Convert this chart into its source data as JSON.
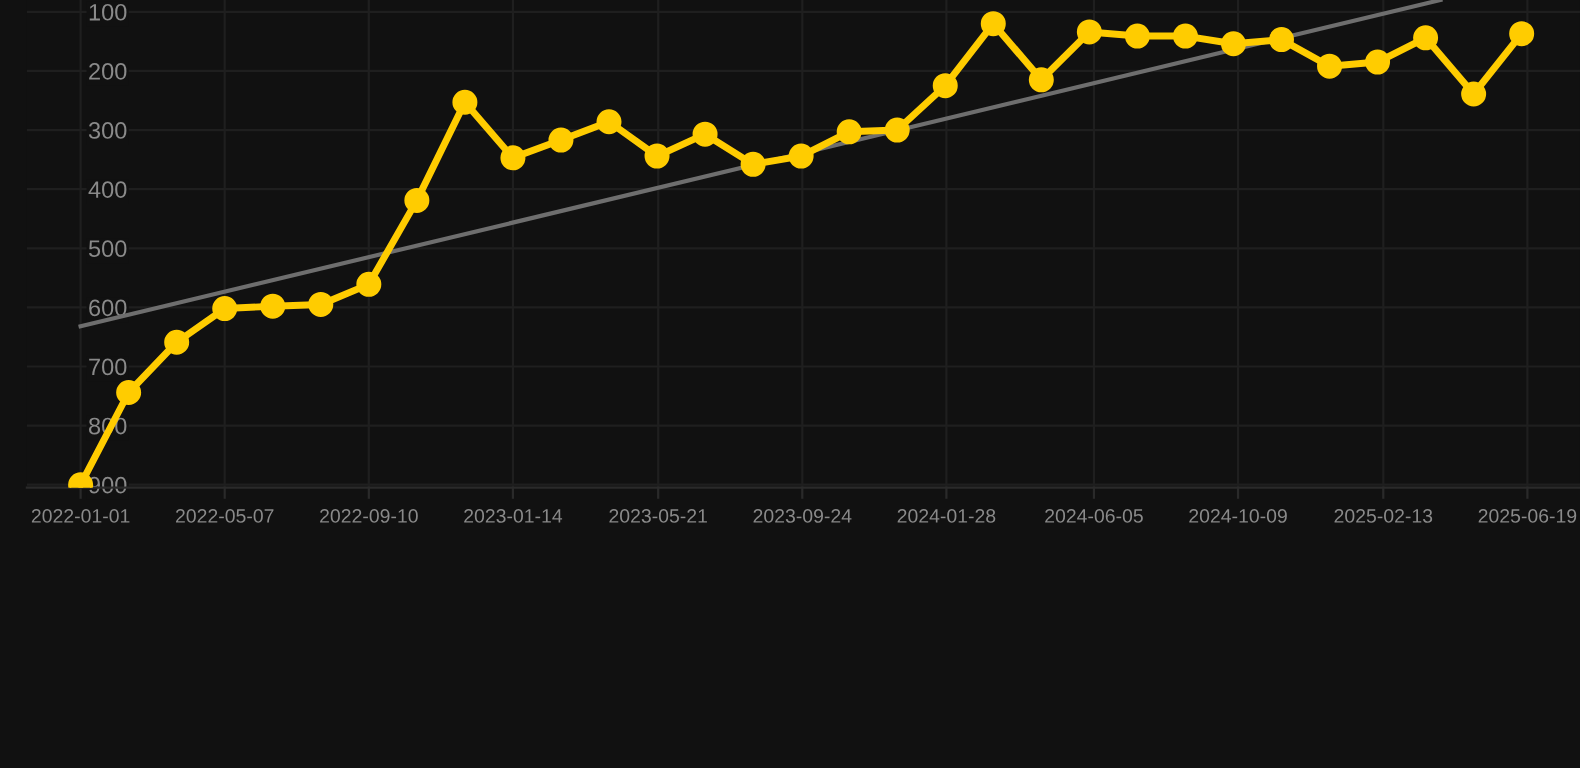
{
  "chart_data": {
    "type": "line",
    "x": [
      "2022-01-01",
      "2022-02-12",
      "2022-03-26",
      "2022-05-07",
      "2022-06-18",
      "2022-07-30",
      "2022-09-10",
      "2022-10-22",
      "2022-12-03",
      "2023-01-14",
      "2023-02-25",
      "2023-04-08",
      "2023-05-20",
      "2023-07-01",
      "2023-08-12",
      "2023-09-23",
      "2023-11-04",
      "2023-12-16",
      "2024-01-27",
      "2024-03-09",
      "2024-04-20",
      "2024-06-01",
      "2024-07-13",
      "2024-08-24",
      "2024-10-05",
      "2024-11-16",
      "2024-12-28",
      "2025-02-08",
      "2025-03-22",
      "2025-05-03",
      "2025-06-14"
    ],
    "series": [
      {
        "color": "#ffcc00",
        "marker": "circle",
        "values": [
          900,
          744,
          659,
          602,
          598,
          595,
          561,
          419,
          253,
          347,
          317,
          286,
          344,
          307,
          358,
          344,
          303,
          300,
          225,
          120,
          215,
          134,
          141,
          141,
          154,
          147,
          192,
          185,
          144,
          239,
          137
        ]
      },
      {
        "type": "line",
        "color": "#6e6e6e",
        "marker": "none",
        "x": [
          "2022-01-01",
          "2025-04-04"
        ],
        "values": [
          632,
          80
        ]
      }
    ],
    "xlim": [
      "2021-11-15",
      "2025-08-04"
    ],
    "xticks": [
      "2022-01-01",
      "2022-05-07",
      "2022-09-10",
      "2023-01-14",
      "2023-05-21",
      "2023-09-24",
      "2024-01-28",
      "2024-06-05",
      "2024-10-09",
      "2025-02-13",
      "2025-06-19"
    ],
    "ylim": [
      905,
      80
    ],
    "yticks": [
      100,
      200,
      300,
      400,
      500,
      600,
      700,
      800,
      900
    ],
    "grid": true
  }
}
